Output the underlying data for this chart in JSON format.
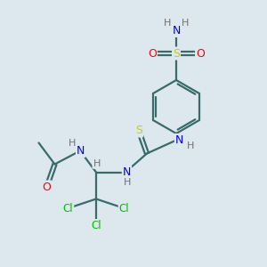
{
  "bg_color": "#dde8ee",
  "atom_colors": {
    "C": "#3a6b6b",
    "N": "#0000ee",
    "O": "#ff0000",
    "S": "#cccc00",
    "Cl": "#00bb00",
    "H": "#707070"
  },
  "bond_color": "#3a6b6b",
  "bond_width": 1.6
}
